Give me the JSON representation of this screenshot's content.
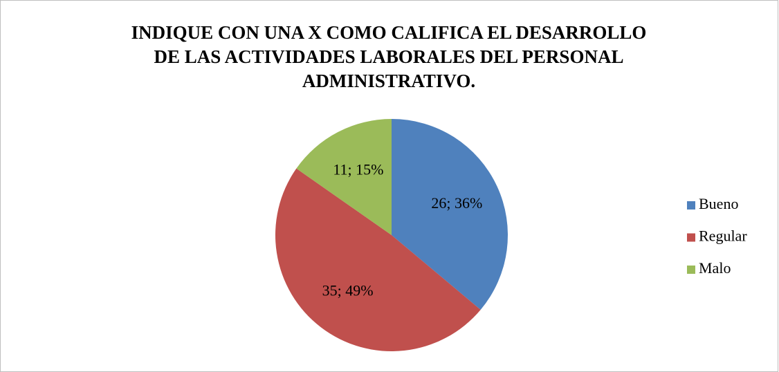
{
  "chart_data": {
    "type": "pie",
    "title": [
      "INDIQUE CON UNA X COMO CALIFICA EL DESARROLLO",
      "DE LAS ACTIVIDADES LABORALES DEL PERSONAL",
      "ADMINISTRATIVO."
    ],
    "categories": [
      "Bueno",
      "Regular",
      "Malo"
    ],
    "values": [
      26,
      35,
      11
    ],
    "value_labels": [
      "26; 36%",
      "35; 49%",
      "11; 15%"
    ],
    "colors": [
      "#4f81bd",
      "#c0504d",
      "#9bbb59"
    ],
    "legend": "right"
  }
}
